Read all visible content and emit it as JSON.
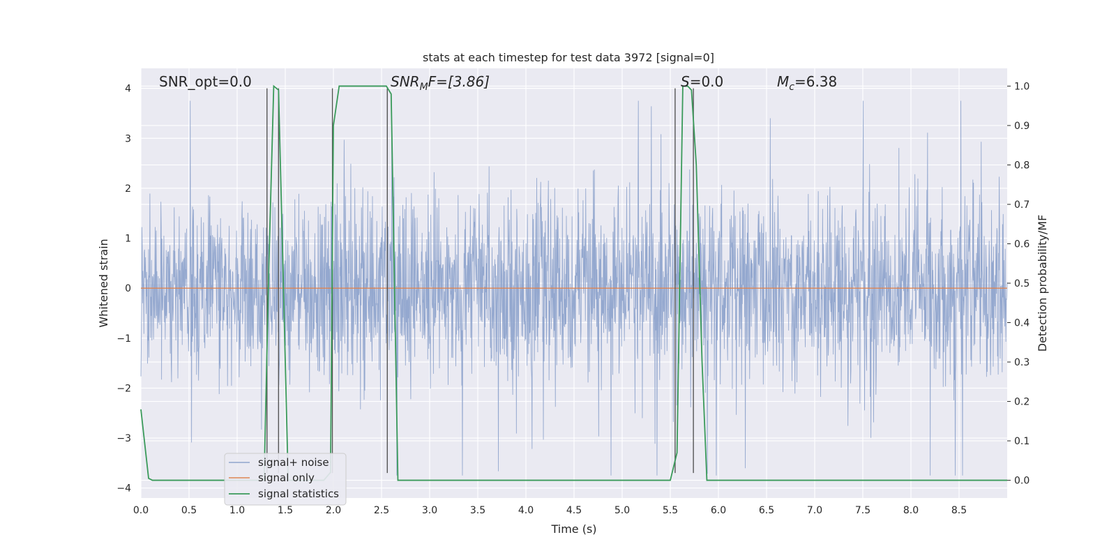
{
  "chart_data": {
    "type": "line",
    "title": "stats at each timestep for test data 3972 [signal=0]",
    "xlabel": "Time (s)",
    "ylabel_left": "Whitened strain",
    "ylabel_right": "Detection probability/MF",
    "xlim": [
      0.0,
      9.0
    ],
    "ylim_left": [
      -4.2,
      4.4
    ],
    "ylim_right": [
      -0.045,
      1.045
    ],
    "x_ticks": [
      "0.0",
      "0.5",
      "1.0",
      "1.5",
      "2.0",
      "2.5",
      "3.0",
      "3.5",
      "4.0",
      "4.5",
      "5.0",
      "5.5",
      "6.0",
      "6.5",
      "7.0",
      "7.5",
      "8.0",
      "8.5"
    ],
    "y_ticks_left": [
      "−4",
      "−3",
      "−2",
      "−1",
      "0",
      "1",
      "2",
      "3",
      "4"
    ],
    "y_ticks_right": [
      "0.0",
      "0.1",
      "0.2",
      "0.3",
      "0.4",
      "0.5",
      "0.6",
      "0.7",
      "0.8",
      "0.9",
      "1.0"
    ],
    "grid": true,
    "legend_position": "lower-left",
    "annotations": {
      "snr_opt": "SNR_opt=0.0",
      "snr_mf": "SNR",
      "snr_mf_sub": "M",
      "snr_mf_rest": "F=[3.86]",
      "s_var": "S",
      "s_rest": "=0.0",
      "mc_var": "M",
      "mc_sub": "c",
      "mc_rest": "=6.38"
    },
    "series": [
      {
        "name": "signal+ noise",
        "color": "#8fa4cc",
        "note_kind": "noise",
        "amplitude_typical": 1.6,
        "duration": 9.0
      },
      {
        "name": "signal only",
        "color": "#dd8452",
        "values_constant": 0.0
      },
      {
        "name": "signal statistics",
        "color": "#3a9a5a",
        "x": [
          0.0,
          0.08,
          0.12,
          0.2,
          1.2,
          1.28,
          1.33,
          1.38,
          1.43,
          1.48,
          1.53,
          1.9,
          1.97,
          2.0,
          2.06,
          2.55,
          2.6,
          2.67,
          2.72,
          3.5,
          5.5,
          5.57,
          5.63,
          5.68,
          5.72,
          5.77,
          5.83,
          5.88,
          5.92,
          9.0
        ],
        "y": [
          0.18,
          0.005,
          0.0,
          0.0,
          0.0,
          0.0,
          0.55,
          1.0,
          0.99,
          0.5,
          0.0,
          0.0,
          0.02,
          0.9,
          1.0,
          1.0,
          0.98,
          0.0,
          0.0,
          0.0,
          0.0,
          0.07,
          1.0,
          1.0,
          0.99,
          0.8,
          0.3,
          0.0,
          0.0,
          0.0
        ]
      }
    ],
    "vertical_lines_x": [
      1.31,
      1.43,
      1.99,
      2.56,
      5.55,
      5.74
    ]
  }
}
